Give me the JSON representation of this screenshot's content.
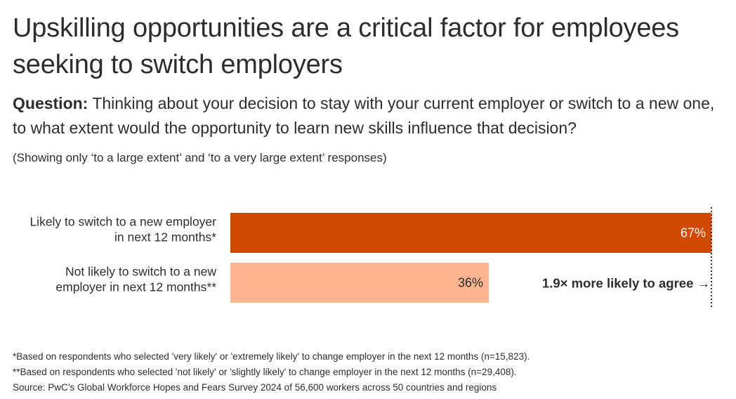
{
  "title": "Upskilling opportunities are a critical factor for employees seeking to switch employers",
  "question": {
    "label": "Question:",
    "text": " Thinking about your decision to stay with your current employer or switch to a new one, to what extent would the opportunity to learn new skills influence that decision?"
  },
  "note": "(Showing only ‘to a large extent’ and ‘to a very large extent’ responses)",
  "chart_data": {
    "type": "bar",
    "orientation": "horizontal",
    "categories": [
      [
        "Likely to switch to a new employer",
        "in next 12 months*"
      ],
      [
        "Not likely to switch to a new",
        "employer in next 12 months**"
      ]
    ],
    "values": [
      67,
      36
    ],
    "value_labels": [
      "67%",
      "36%"
    ],
    "colors": [
      "#d04a02",
      "#fdb48f"
    ],
    "label_colors": [
      "#ffffff",
      "#2d2d2d"
    ],
    "xlim": [
      0,
      67
    ],
    "reference_line": 67,
    "annotation": "1.9× more likely to agree →",
    "grid": false
  },
  "footnotes": [
    "*Based on respondents who selected 'very likely' or 'extremely likely' to change employer in the next 12 months (n=15,823).",
    "**Based on respondents who selected 'not likely' or 'slightly likely' to change employer in the next 12 months (n=29,408).",
    "Source: PwC’s Global Workforce Hopes and Fears Survey 2024 of 56,600 workers across 50 countries and regions"
  ]
}
